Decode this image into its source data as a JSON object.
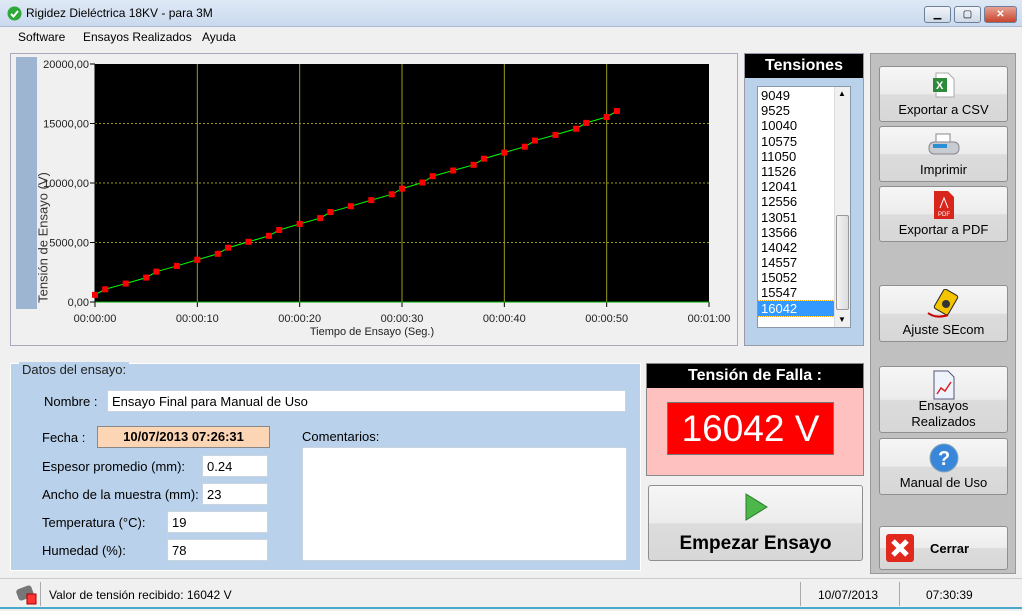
{
  "window": {
    "title": "Rigidez Dieléctrica 18KV - para 3M",
    "controls": [
      "minimize",
      "maximize",
      "close"
    ]
  },
  "menu": [
    "Software",
    "Ensayos Realizados",
    "Ayuda"
  ],
  "chart_data": {
    "type": "line",
    "xlabel": "Tiempo de Ensayo (Seg.)",
    "ylabel": "Tensión de Ensayo (V)",
    "xlim": [
      0,
      60
    ],
    "ylim": [
      0,
      20000
    ],
    "x_ticks": [
      "00:00:00",
      "00:00:10",
      "00:00:20",
      "00:00:30",
      "00:00:40",
      "00:00:50",
      "00:01:00"
    ],
    "y_ticks": [
      "0,00",
      "5000,00",
      "10000,00",
      "15000,00",
      "20000,00"
    ],
    "grid": true,
    "colors": {
      "background": "#000000",
      "line": "#00ff00",
      "marker": "#ff0000",
      "grid": "#9a9a20"
    },
    "x": [
      0,
      1,
      3,
      5,
      6,
      8,
      10,
      12,
      13,
      15,
      17,
      18,
      20,
      22,
      23,
      25,
      27,
      29,
      30,
      32,
      33,
      35,
      37,
      38,
      40,
      42,
      43,
      45,
      47,
      48,
      50,
      51
    ],
    "y": [
      600,
      1070,
      1550,
      2050,
      2550,
      3030,
      3550,
      4050,
      4560,
      5060,
      5560,
      6050,
      6560,
      7050,
      7560,
      8050,
      8560,
      9049,
      9525,
      10040,
      10575,
      11050,
      11526,
      12041,
      12556,
      13051,
      13566,
      14042,
      14557,
      15052,
      15547,
      16042
    ]
  },
  "tensiones": {
    "title": "Tensiones",
    "items": [
      "9049",
      "9525",
      "10040",
      "10575",
      "11050",
      "11526",
      "12041",
      "12556",
      "13051",
      "13566",
      "14042",
      "14557",
      "15052",
      "15547",
      "16042"
    ],
    "selected": "16042"
  },
  "side_buttons": {
    "csv": "Exportar a CSV",
    "print": "Imprimir",
    "pdf": "Exportar a PDF",
    "ajuste": "Ajuste SEcom",
    "ensayos1": "Ensayos",
    "ensayos2": "Realizados",
    "manual": "Manual de Uso",
    "cerrar": "Cerrar"
  },
  "datos": {
    "legend": "Datos del ensayo:",
    "nombre_label": "Nombre :",
    "nombre": "Ensayo Final para Manual de Uso",
    "fecha_label": "Fecha :",
    "fecha": "10/07/2013 07:26:31",
    "espesor_label": "Espesor promedio (mm):",
    "espesor": "0.24",
    "ancho_label": "Ancho de la muestra (mm):",
    "ancho": "23",
    "temp_label": "Temperatura (°C):",
    "temp": "19",
    "hum_label": "Humedad (%):",
    "hum": "78",
    "coment_label": "Comentarios:",
    "coment": ""
  },
  "falla": {
    "title": "Tensión de Falla :",
    "value": "16042 V"
  },
  "start_button": "Empezar Ensayo",
  "status": {
    "message": "Valor de tensión recibido: 16042 V",
    "date": "10/07/2013",
    "time": "07:30:39"
  }
}
